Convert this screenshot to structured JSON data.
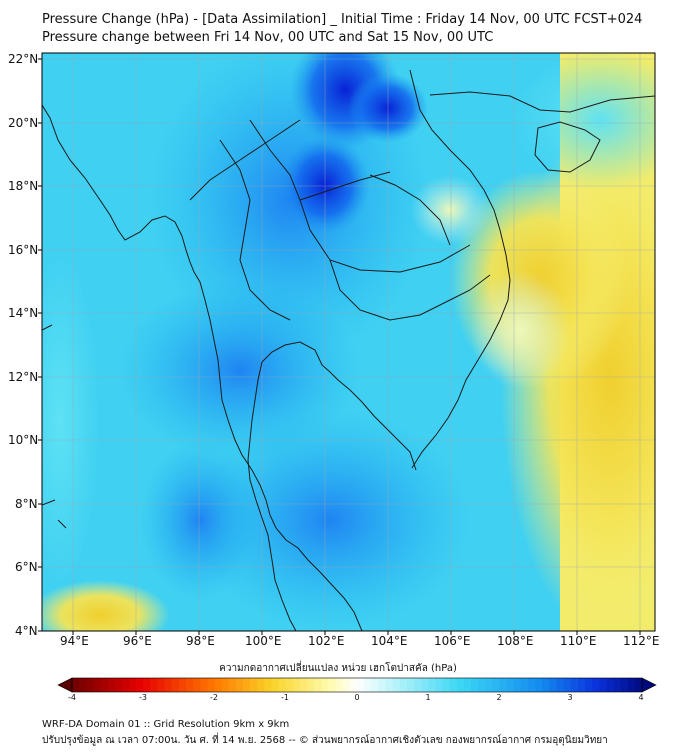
{
  "title_line1": "Pressure Change (hPa) - [Data Assimilation] _ Initial Time : Friday 14 Nov, 00 UTC FCST+024",
  "title_line2": "Pressure change between Fri 14 Nov, 00 UTC and Sat 15 Nov, 00 UTC",
  "map": {
    "lon_range": [
      93,
      112.5
    ],
    "lat_range": [
      4,
      22.2
    ],
    "lon_ticks": [
      "94°E",
      "96°E",
      "98°E",
      "100°E",
      "102°E",
      "104°E",
      "106°E",
      "108°E",
      "110°E",
      "112°E"
    ],
    "lat_ticks": [
      "22°N",
      "20°N",
      "18°N",
      "16°N",
      "14°N",
      "12°N",
      "10°N",
      "8°N",
      "6°N",
      "4°N"
    ],
    "grid": true,
    "colors": {
      "ocean_land_base": "#3fd6f2",
      "strong_fall": "#0a2fd8",
      "rise": "#f2e14a",
      "coast": "#1a1a1a"
    }
  },
  "colorbar": {
    "title": "ความกดอากาศเปลี่ยนแปลง หน่วย เฮกโตปาสคัล (hPa)",
    "ticks": [
      "-4",
      "-3",
      "-2",
      "-1",
      "0",
      "1",
      "2",
      "3",
      "4"
    ],
    "range": [
      -4,
      4
    ]
  },
  "footer_line1": "WRF-DA Domain 01 :: Grid Resolution 9km x 9km",
  "footer_line2": "ปรับปรุงข้อมูล ณ เวลา 07:00น. วัน ศ. ที่ 14 พ.ย. 2568 -- © ส่วนพยากรณ์อากาศเชิงตัวเลข กองพยากรณ์อากาศ กรมอุตุนิยมวิทยา"
}
